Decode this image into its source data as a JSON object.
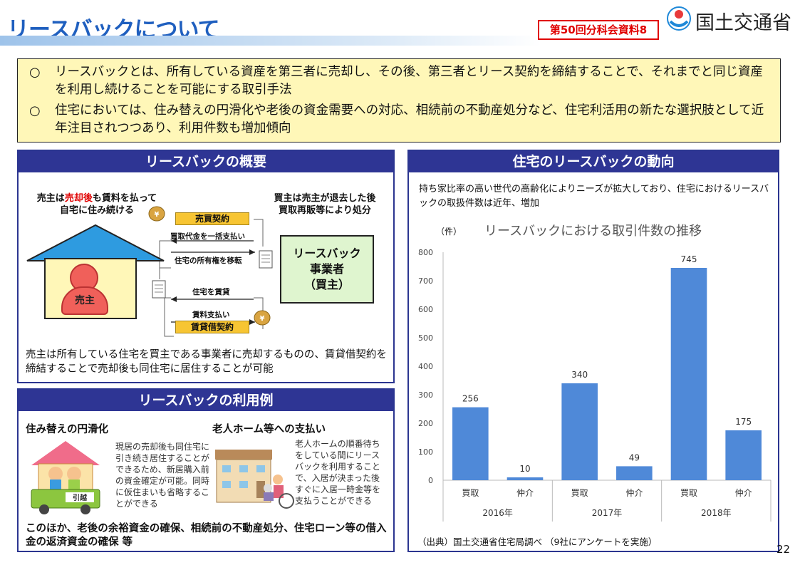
{
  "header": {
    "title": "リースバックについて",
    "doc_label": "第50回分科会資料8",
    "ministry": "国土交通省"
  },
  "intro": {
    "mark": "○",
    "items": [
      "リースバックとは、所有している資産を第三者に売却し、その後、第三者とリース契約を締結することで、それまでと同じ資産を利用し続けることを可能にする取引手法",
      "住宅においては、住み替えの円滑化や老後の資金需要への対応、相続前の不動産処分など、住宅利活用の新たな選択肢として近年注目されつつあり、利用件数も増加傾向"
    ]
  },
  "overview": {
    "heading": "リースバックの概要",
    "seller_note_pre": "売主は",
    "seller_note_hl": "売却後",
    "seller_note_post": "も賃料を払って",
    "seller_note_line2": "自宅に住み続ける",
    "buyer_note_line1": "買主は売主が退去した後",
    "buyer_note_line2": "買取再販等により処分",
    "seller_label": "売主",
    "buyer_line1": "リースバック",
    "buyer_line2": "事業者",
    "buyer_line3": "（買主）",
    "tag_sale": "売買契約",
    "flow1": "買取代金を一括支払い",
    "flow2": "住宅の所有権を移転",
    "flow3": "住宅を賃貸",
    "flow4": "賃料支払い",
    "tag_lease": "賃貸借契約",
    "yen_symbol": "¥",
    "description": "売主は所有している住宅を買主である事業者に売却するものの、賃貸借契約を締結することで売却後も同住宅に居住することが可能"
  },
  "examples": {
    "heading": "リースバックの利用例",
    "ex1_title": "住み替えの円滑化",
    "ex1_text": "現居の売却後も同住宅に引き続き居住することができるため、新居購入前の資金確定が可能。同時に仮住まいも省略することができる",
    "ex1_truck_label": "引越",
    "ex2_title": "老人ホーム等への支払い",
    "ex2_text": "老人ホームの順番待ちをしている間にリースバックを利用することで、入居が決まった後すぐに入居一時金等を支払うことができる",
    "footer": "このほか、老後の余裕資金の確保、相続前の不動産処分、住宅ローン等の借入金の返済資金の確保 等"
  },
  "trend": {
    "heading": "住宅のリースバックの動向",
    "description": "持ち家比率の高い世代の高齢化によりニーズが拡大しており、住宅におけるリースバックの取扱件数は近年、増加",
    "source": "（出典）国土交通省住宅局調べ （9社にアンケートを実施）"
  },
  "chart_data": {
    "type": "bar",
    "title": "リースバックにおける取引件数の推移",
    "unit_label": "（件）",
    "categories": [
      "買取",
      "仲介",
      "買取",
      "仲介",
      "買取",
      "仲介"
    ],
    "groups": [
      "2016年",
      "2017年",
      "2018年"
    ],
    "values": [
      256,
      10,
      340,
      49,
      745,
      175
    ],
    "ylim": [
      0,
      800
    ],
    "yticks": [
      "0",
      "100",
      "200",
      "300",
      "400",
      "500",
      "600",
      "700",
      "800"
    ],
    "bar_color": "#4f89d8",
    "grid": false
  },
  "page_number": "22"
}
